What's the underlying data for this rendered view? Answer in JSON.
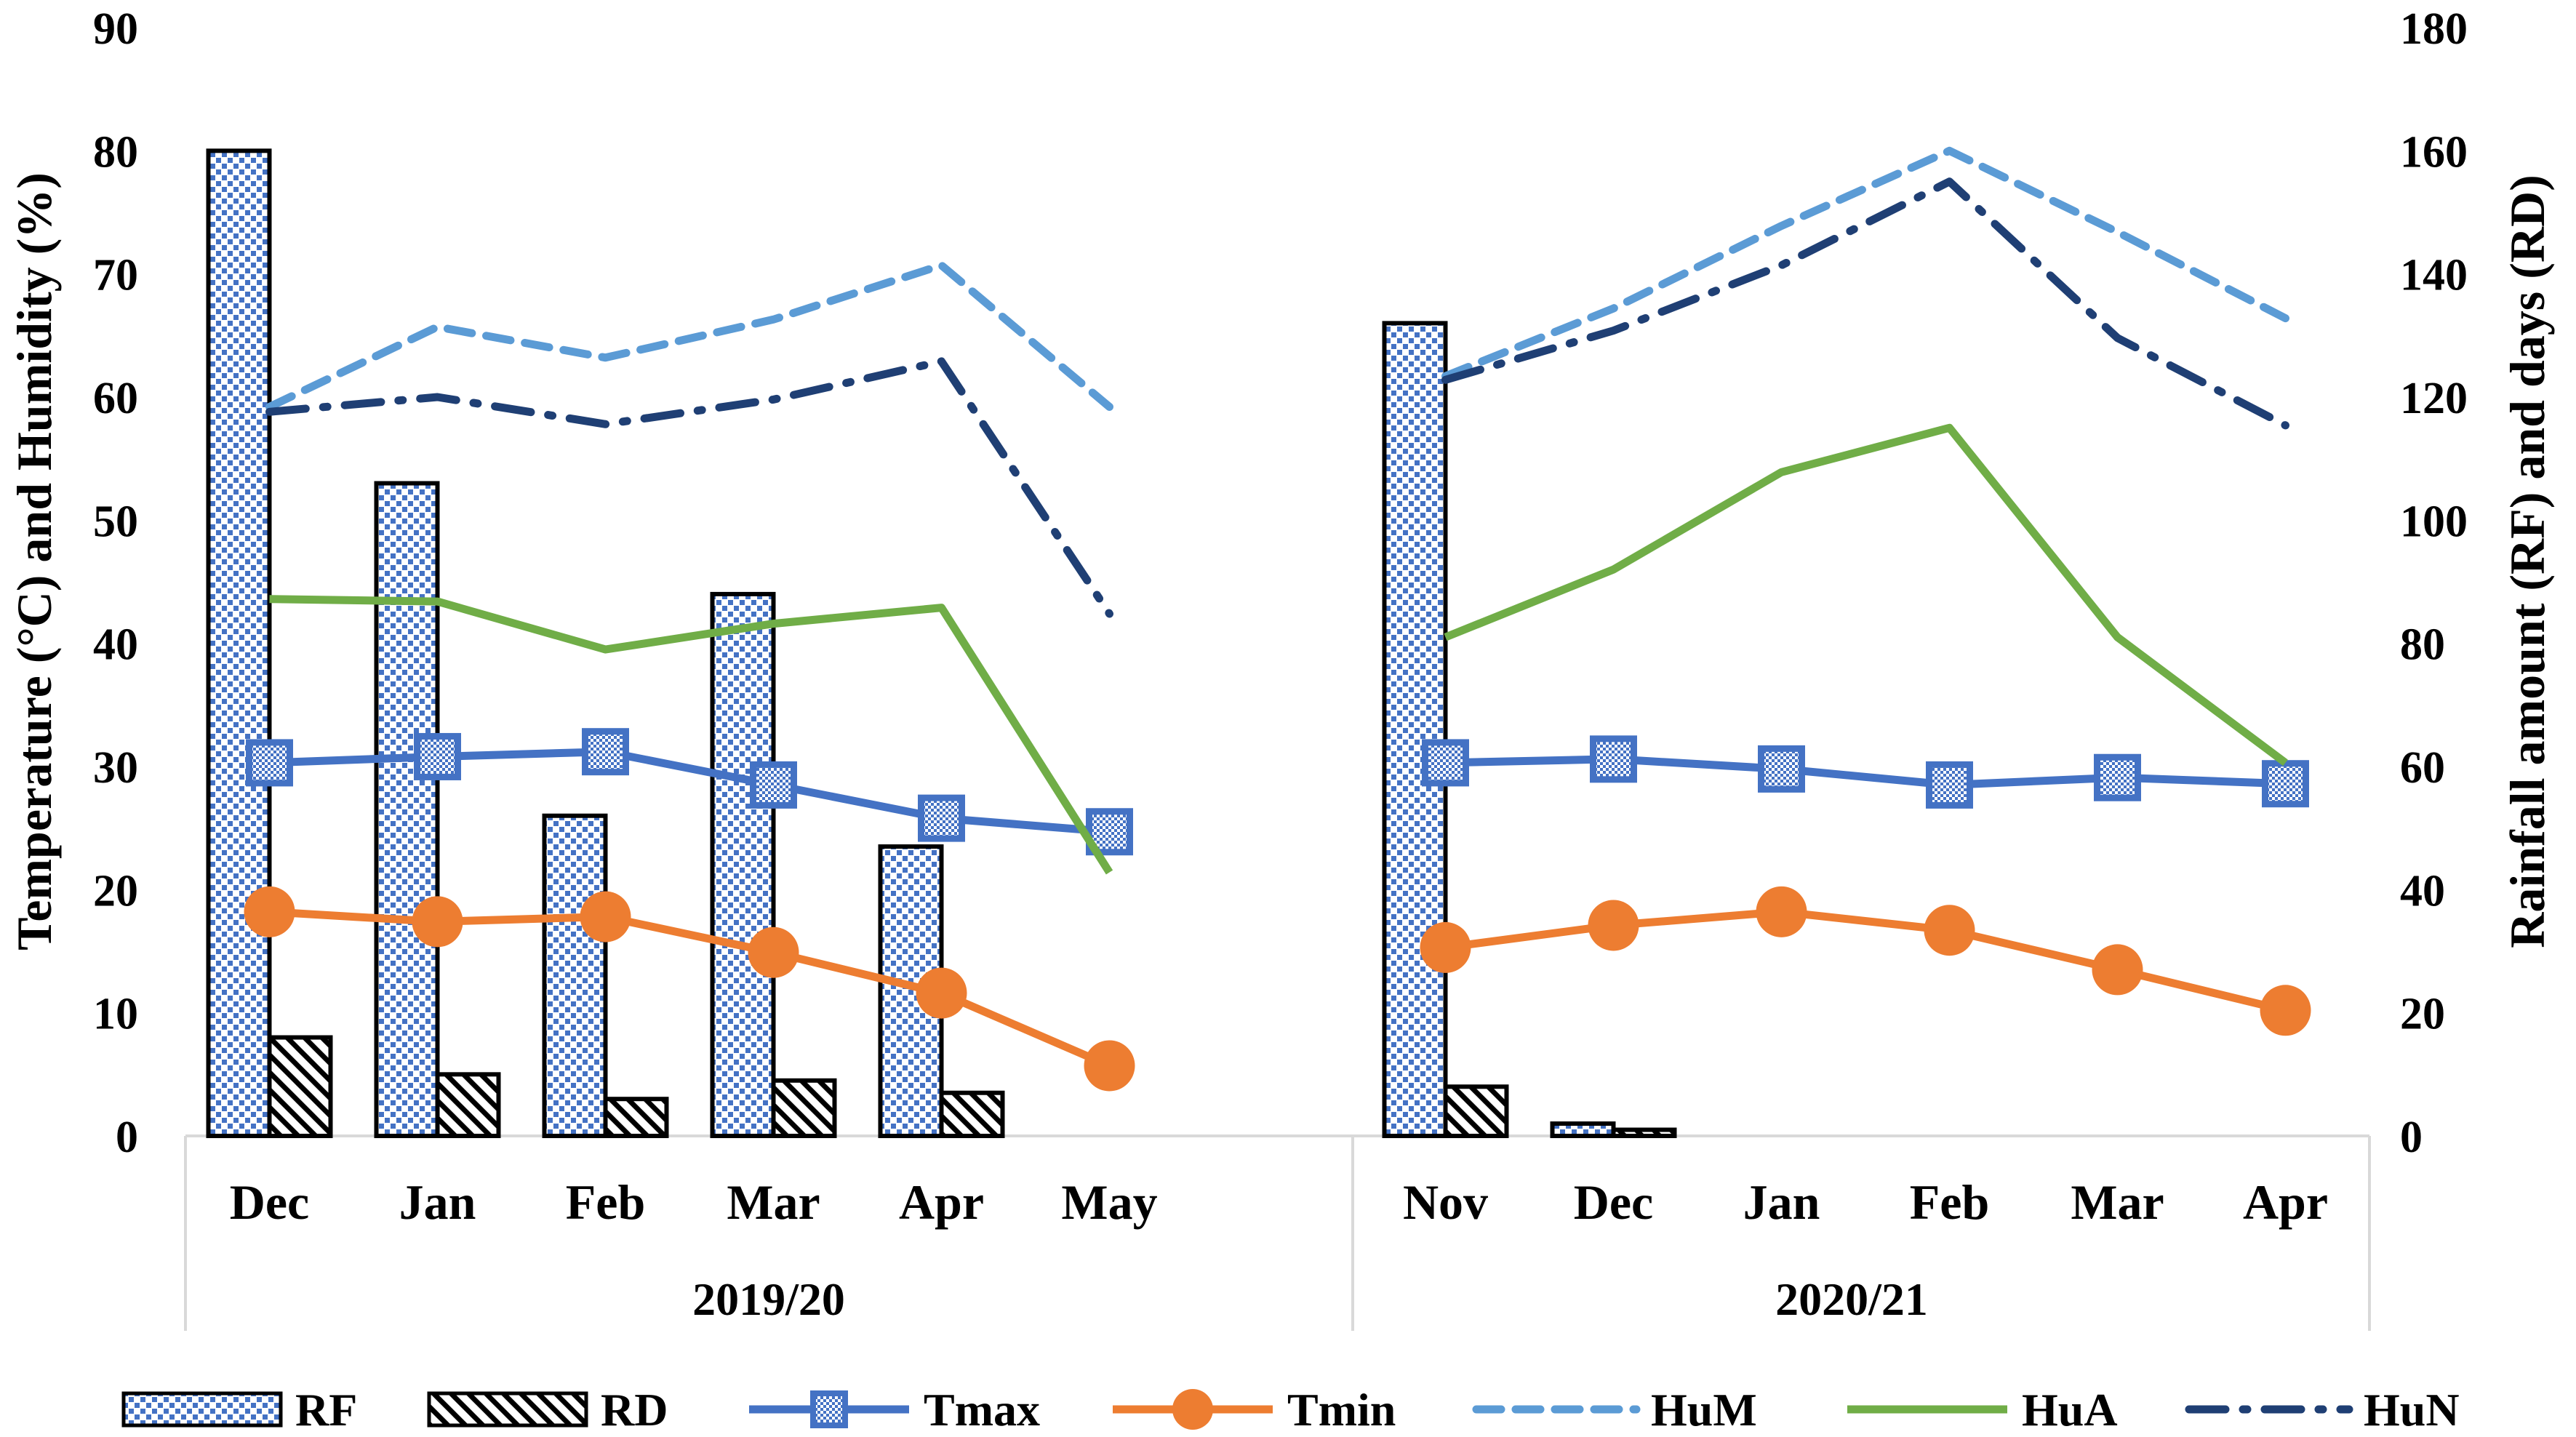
{
  "chart_data": {
    "type": "bar",
    "title": "",
    "ylabel_left": "Temperature (°C) and Humidity (%)",
    "ylabel_right": "Rainfall amount (RF) and days (RD)",
    "ylim_left": [
      0,
      90
    ],
    "ylim_right": [
      0,
      180
    ],
    "yticks_left": [
      "0",
      "10",
      "20",
      "30",
      "40",
      "50",
      "60",
      "70",
      "80",
      "90"
    ],
    "yticks_right": [
      "0",
      "20",
      "40",
      "60",
      "80",
      "100",
      "120",
      "140",
      "160",
      "180"
    ],
    "groups": [
      {
        "name": "2019/20",
        "categories": [
          "Dec",
          "Jan",
          "Feb",
          "Mar",
          "Apr",
          "May"
        ]
      },
      {
        "name": "2020/21",
        "categories": [
          "Nov",
          "Dec",
          "Jan",
          "Feb",
          "Mar",
          "Apr"
        ]
      }
    ],
    "bar_series": [
      {
        "name": "RF",
        "axis": "right",
        "color": "#4472c4",
        "values": [
          [
            160,
            106,
            52,
            88,
            47,
            null
          ],
          [
            132,
            2,
            null,
            null,
            null,
            null
          ]
        ]
      },
      {
        "name": "RD",
        "axis": "right",
        "color": "#000000",
        "values": [
          [
            16,
            10,
            6,
            9,
            7,
            null
          ],
          [
            8,
            1,
            null,
            null,
            null,
            null
          ]
        ]
      }
    ],
    "line_series": [
      {
        "name": "Tmax",
        "axis": "left",
        "color": "#4472c4",
        "style": "solid-square",
        "values": [
          [
            30.3,
            30.8,
            31.2,
            28.5,
            25.8,
            24.7
          ],
          [
            30.3,
            30.6,
            29.8,
            28.5,
            29.1,
            28.6
          ]
        ]
      },
      {
        "name": "Tmin",
        "axis": "left",
        "color": "#ed7d31",
        "style": "solid-circle",
        "values": [
          [
            18.2,
            17.4,
            17.8,
            14.9,
            11.6,
            5.7
          ],
          [
            15.3,
            17.1,
            18.2,
            16.7,
            13.5,
            10.2
          ]
        ]
      },
      {
        "name": "HuM",
        "axis": "left",
        "color": "#5b9bd5",
        "style": "dash",
        "values": [
          [
            59.2,
            65.7,
            63.2,
            66.3,
            70.7,
            59.2
          ],
          [
            61.7,
            67.2,
            73.9,
            80.0,
            73.4,
            66.4
          ]
        ]
      },
      {
        "name": "HuA",
        "axis": "left",
        "color": "#70ad47",
        "style": "solid",
        "values": [
          [
            43.6,
            43.4,
            39.5,
            41.6,
            42.9,
            21.4
          ],
          [
            40.5,
            46.0,
            53.9,
            57.5,
            40.5,
            30.3
          ]
        ]
      },
      {
        "name": "HuN",
        "axis": "left",
        "color": "#1f3f74",
        "style": "dash-dot",
        "values": [
          [
            58.8,
            60.0,
            57.8,
            59.8,
            62.9,
            42.4
          ],
          [
            61.4,
            65.4,
            70.7,
            77.5,
            64.8,
            57.7
          ]
        ]
      }
    ],
    "legend": {
      "position": "bottom",
      "entries": [
        "RF",
        "RD",
        "Tmax",
        "Tmin",
        "HuM",
        "HuA",
        "HuN"
      ]
    }
  }
}
